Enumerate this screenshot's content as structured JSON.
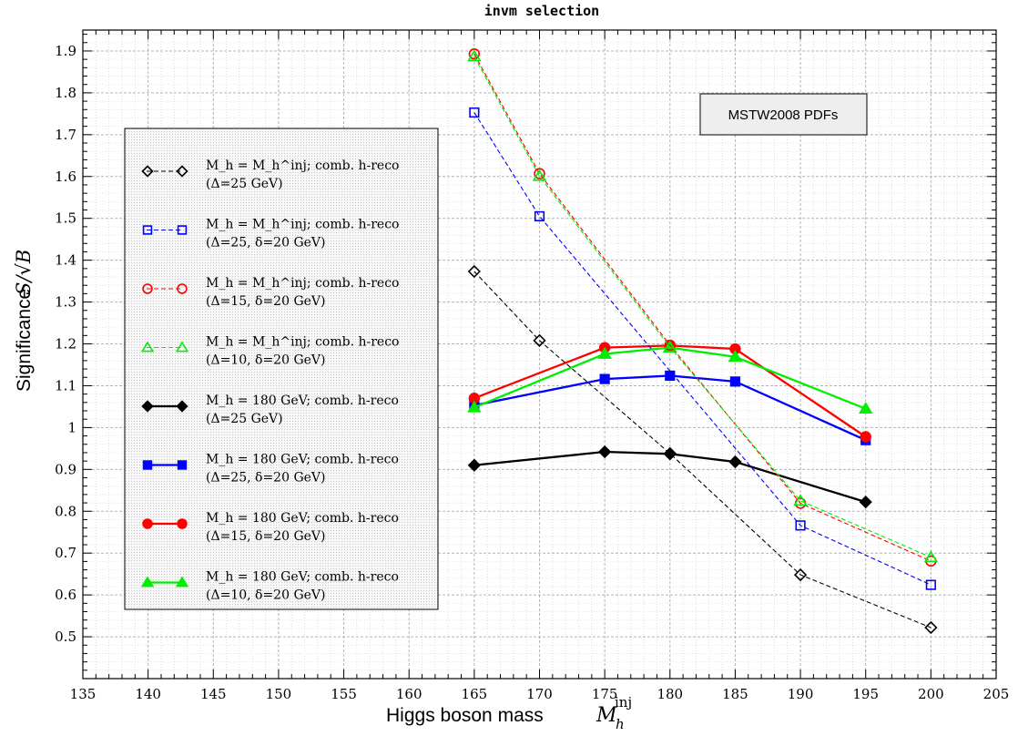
{
  "chart_data": {
    "type": "line",
    "title": "invm  selection",
    "xlabel": "Higgs boson mass",
    "xlabel_math": {
      "base": "M",
      "sub": "h",
      "sup": "inj"
    },
    "ylabel": "Significance",
    "ylabel_math": "S/√B",
    "xlim": [
      135,
      205
    ],
    "ylim": [
      0.4,
      1.95
    ],
    "x_ticks": [
      "135",
      "140",
      "145",
      "150",
      "155",
      "160",
      "165",
      "170",
      "175",
      "180",
      "185",
      "190",
      "195",
      "200",
      "205"
    ],
    "y_ticks": [
      "0.5",
      "0.6",
      "0.7",
      "0.8",
      "0.9",
      "1",
      "1.1",
      "1.2",
      "1.3",
      "1.4",
      "1.5",
      "1.6",
      "1.7",
      "1.8",
      "1.9"
    ],
    "grid": true,
    "legend_position": "left",
    "annotation": "MSTW2008 PDFs",
    "series": [
      {
        "line1": "M_h = M_h^inj;  comb. h-reco",
        "line2": "(Δ=25 GeV)",
        "color": "#000000",
        "marker": "diamond",
        "filled": false,
        "dashed": true,
        "x": [
          165,
          170,
          180,
          190,
          200
        ],
        "values": [
          1.373,
          1.208,
          0.938,
          0.648,
          0.522
        ]
      },
      {
        "line1": "M_h = M_h^inj;  comb. h-reco",
        "line2": "(Δ=25, δ=20 GeV)",
        "color": "#0000ff",
        "marker": "square",
        "filled": false,
        "dashed": true,
        "x": [
          165,
          170,
          190,
          200
        ],
        "values": [
          1.753,
          1.505,
          0.766,
          0.624
        ]
      },
      {
        "line1": "M_h = M_h^inj;  comb. h-reco",
        "line2": "(Δ=15, δ=20 GeV)",
        "color": "#ff0000",
        "marker": "circle",
        "filled": false,
        "dashed": true,
        "x": [
          165,
          170,
          180,
          190,
          200
        ],
        "values": [
          1.893,
          1.607,
          1.197,
          0.819,
          0.681
        ]
      },
      {
        "line1": "M_h = M_h^inj;  comb. h-reco",
        "line2": "(Δ=10, δ=20 GeV)",
        "color": "#00ee00",
        "marker": "triangle",
        "filled": false,
        "dashed": true,
        "x": [
          165,
          170,
          180,
          190,
          200
        ],
        "values": [
          1.887,
          1.601,
          1.192,
          0.825,
          0.69
        ]
      },
      {
        "line1": "M_h = 180 GeV;  comb. h-reco",
        "line2": "(Δ=25 GeV)",
        "color": "#000000",
        "marker": "diamond",
        "filled": true,
        "dashed": false,
        "x": [
          165,
          175,
          180,
          185,
          195
        ],
        "values": [
          0.91,
          0.942,
          0.937,
          0.918,
          0.822
        ]
      },
      {
        "line1": "M_h = 180 GeV; comb. h-reco",
        "line2": "(Δ=25, δ=20 GeV)",
        "color": "#0000ff",
        "marker": "square",
        "filled": true,
        "dashed": false,
        "x": [
          165,
          175,
          180,
          185,
          195
        ],
        "values": [
          1.053,
          1.116,
          1.124,
          1.11,
          0.97
        ]
      },
      {
        "line1": "M_h = 180 GeV;  comb. h-reco",
        "line2": "(Δ=15, δ=20 GeV)",
        "color": "#ff0000",
        "marker": "circle",
        "filled": true,
        "dashed": false,
        "x": [
          165,
          175,
          180,
          185,
          195
        ],
        "values": [
          1.07,
          1.191,
          1.196,
          1.188,
          0.978
        ]
      },
      {
        "line1": "M_h = 180 GeV;  comb. h-reco",
        "line2": "(Δ=10, δ=20 GeV)",
        "color": "#00ee00",
        "marker": "triangle",
        "filled": true,
        "dashed": false,
        "x": [
          165,
          175,
          180,
          185,
          195
        ],
        "values": [
          1.048,
          1.176,
          1.191,
          1.169,
          1.045
        ]
      }
    ]
  }
}
